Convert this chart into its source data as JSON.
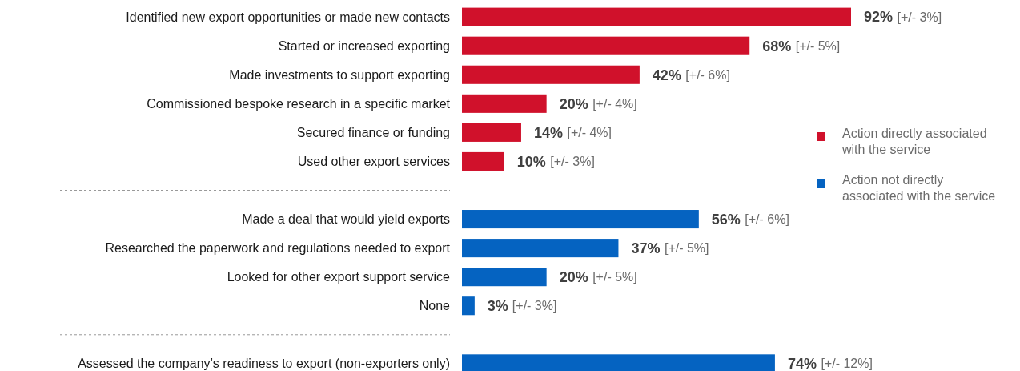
{
  "chart_data": {
    "type": "bar",
    "orientation": "horizontal",
    "categories": [
      "Identified new export opportunities or made new contacts",
      "Started or increased exporting",
      "Made investments to support exporting",
      "Commissioned bespoke research in a specific market",
      "Secured finance or funding",
      "Used other export services",
      null,
      "Made a deal that would yield exports",
      "Researched the paperwork and regulations needed to export",
      "Looked for other export support service",
      "None",
      null,
      "Assessed the company’s readiness to export (non-exporters only)"
    ],
    "series": [
      {
        "name": "Action directly associated with the service",
        "color": "#d0112b",
        "values": [
          92,
          68,
          42,
          20,
          14,
          10,
          null,
          null,
          null,
          null,
          null,
          null,
          null
        ],
        "value_labels": [
          "92%",
          "68%",
          "42%",
          "20%",
          "14%",
          "10%",
          null,
          null,
          null,
          null,
          null,
          null,
          null
        ]
      },
      {
        "name": "Action not directly associated with the service",
        "color": "#0563c1",
        "values": [
          null,
          null,
          null,
          null,
          null,
          null,
          null,
          56,
          37,
          20,
          3,
          null,
          74
        ],
        "value_labels": [
          null,
          null,
          null,
          null,
          null,
          null,
          null,
          "56%",
          "37%",
          "20%",
          "3%",
          null,
          "74%"
        ]
      }
    ],
    "legend": "right",
    "annotations": [
      "[+/- 3%]",
      "[+/- 5%]",
      "[+/- 6%]",
      "[+/- 4%]",
      "[+/- 4%]",
      "[+/- 3%]",
      "[+/- 6%]",
      "[+/- 5%]",
      "[+/- 5%]",
      "[+/- 3%]",
      "[+/- 12%]"
    ]
  }
}
